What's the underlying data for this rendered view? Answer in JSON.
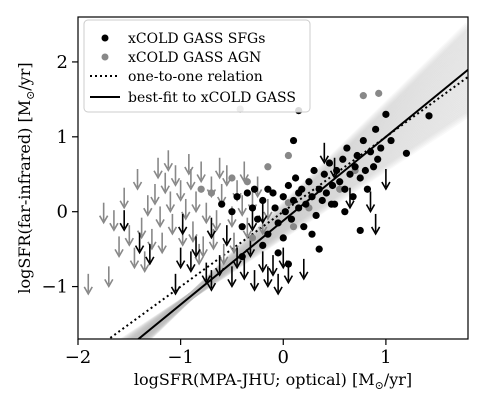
{
  "chart_data": {
    "type": "scatter",
    "xlabel_main": "logSFR(MPA-JHU; optical) [M",
    "xlabel_sub": "⊙",
    "xlabel_tail": "/yr]",
    "ylabel_main": "logSFR(far-infrared) [M",
    "ylabel_sub": "⊙",
    "ylabel_tail": "/yr]",
    "xlim": [
      -2.0,
      1.8
    ],
    "ylim": [
      -1.7,
      2.6
    ],
    "xticks": [
      -2,
      -1,
      0,
      1
    ],
    "xtick_labels": [
      "−2",
      "−1",
      "0",
      "1"
    ],
    "yticks": [
      -1,
      0,
      1,
      2
    ],
    "ytick_labels": [
      "−1",
      "0",
      "1",
      "2"
    ],
    "grid": false,
    "legend_position": "top-left",
    "legend": [
      {
        "label": "xCOLD GASS SFGs",
        "marker": "dot",
        "color": "#000000"
      },
      {
        "label": "xCOLD GASS AGN",
        "marker": "dot",
        "color": "#888888"
      },
      {
        "label": "one-to-one relation",
        "marker": "dotted-line",
        "color": "#000000"
      },
      {
        "label": "best-fit to xCOLD GASS",
        "marker": "solid-line",
        "color": "#000000"
      }
    ],
    "colors": {
      "sfg": "#000000",
      "agn": "#888888",
      "band": "#bdbdbd"
    },
    "one_to_one": {
      "slope": 1.0,
      "intercept": 0.0
    },
    "best_fit": {
      "slope": 1.12,
      "intercept": -0.12
    },
    "sfg_detections": [
      [
        -0.6,
        0.1
      ],
      [
        -0.5,
        0.0
      ],
      [
        -0.45,
        0.2
      ],
      [
        -0.4,
        -0.2
      ],
      [
        -0.35,
        0.25
      ],
      [
        -0.3,
        0.05
      ],
      [
        -0.28,
        0.3
      ],
      [
        -0.25,
        -0.1
      ],
      [
        -0.2,
        0.15
      ],
      [
        -0.15,
        -0.3
      ],
      [
        -0.1,
        0.25
      ],
      [
        -0.08,
        0.05
      ],
      [
        -0.05,
        -0.15
      ],
      [
        0.0,
        0.2
      ],
      [
        0.02,
        0.0
      ],
      [
        0.05,
        0.35
      ],
      [
        0.08,
        -0.1
      ],
      [
        0.1,
        0.15
      ],
      [
        0.12,
        0.45
      ],
      [
        0.15,
        0.05
      ],
      [
        0.18,
        0.3
      ],
      [
        0.2,
        -0.2
      ],
      [
        0.22,
        0.1
      ],
      [
        0.25,
        0.4
      ],
      [
        0.28,
        0.2
      ],
      [
        0.3,
        0.55
      ],
      [
        0.32,
        -0.05
      ],
      [
        0.35,
        0.3
      ],
      [
        0.38,
        0.15
      ],
      [
        0.4,
        0.5
      ],
      [
        0.42,
        0.25
      ],
      [
        0.45,
        0.65
      ],
      [
        0.48,
        0.35
      ],
      [
        0.5,
        0.1
      ],
      [
        0.52,
        0.55
      ],
      [
        0.55,
        0.4
      ],
      [
        0.58,
        0.7
      ],
      [
        0.6,
        0.3
      ],
      [
        0.62,
        0.85
      ],
      [
        0.65,
        0.5
      ],
      [
        0.68,
        0.2
      ],
      [
        0.7,
        0.6
      ],
      [
        0.72,
        0.75
      ],
      [
        0.75,
        0.45
      ],
      [
        0.78,
        0.95
      ],
      [
        0.8,
        0.55
      ],
      [
        0.82,
        0.3
      ],
      [
        0.85,
        0.8
      ],
      [
        0.88,
        0.6
      ],
      [
        0.9,
        1.1
      ],
      [
        0.92,
        0.7
      ],
      [
        0.95,
        0.85
      ],
      [
        1.0,
        1.3
      ],
      [
        1.05,
        0.95
      ],
      [
        1.2,
        0.78
      ],
      [
        1.42,
        1.28
      ],
      [
        0.15,
        1.35
      ],
      [
        0.1,
        0.95
      ],
      [
        -0.05,
        -0.55
      ],
      [
        0.35,
        -0.5
      ],
      [
        0.75,
        -0.25
      ],
      [
        0.6,
        0.0
      ],
      [
        0.0,
        -0.35
      ],
      [
        -0.2,
        -0.45
      ],
      [
        0.05,
        -0.7
      ],
      [
        -0.4,
        -0.6
      ],
      [
        0.28,
        -0.3
      ],
      [
        0.47,
        0.1
      ],
      [
        0.15,
        0.25
      ],
      [
        -0.15,
        0.3
      ]
    ],
    "sfg_limits": [
      [
        -1.55,
        -0.1
      ],
      [
        -1.3,
        -0.55
      ],
      [
        -1.0,
        -0.6
      ],
      [
        -0.9,
        -0.65
      ],
      [
        -0.85,
        -0.45
      ],
      [
        -0.75,
        -0.8
      ],
      [
        -0.7,
        -0.9
      ],
      [
        -0.62,
        -0.7
      ],
      [
        -0.55,
        -0.3
      ],
      [
        -0.5,
        -0.85
      ],
      [
        -0.45,
        -0.6
      ],
      [
        -0.38,
        -0.75
      ],
      [
        -0.32,
        -0.45
      ],
      [
        -0.28,
        -0.9
      ],
      [
        -0.2,
        -0.65
      ],
      [
        -0.15,
        -0.85
      ],
      [
        -0.1,
        -0.7
      ],
      [
        -0.05,
        -0.95
      ],
      [
        0.0,
        -0.6
      ],
      [
        0.05,
        -0.8
      ],
      [
        -1.05,
        -0.95
      ],
      [
        -1.4,
        -0.4
      ],
      [
        -0.98,
        -0.15
      ],
      [
        -0.7,
        -0.2
      ],
      [
        0.2,
        -0.75
      ],
      [
        0.4,
        0.8
      ],
      [
        0.5,
        0.6
      ],
      [
        0.65,
        0.2
      ],
      [
        0.85,
        0.15
      ],
      [
        0.9,
        -0.15
      ],
      [
        1.0,
        0.45
      ],
      [
        -0.3,
        -0.1
      ],
      [
        -0.2,
        0.0
      ]
    ],
    "agn_detections": [
      [
        -0.42,
        1.37
      ],
      [
        0.78,
        1.55
      ],
      [
        0.93,
        1.58
      ],
      [
        -0.35,
        0.4
      ],
      [
        0.05,
        0.12
      ],
      [
        -0.15,
        0.6
      ],
      [
        -0.7,
        0.25
      ],
      [
        -0.3,
        -0.35
      ],
      [
        0.25,
        0.05
      ],
      [
        0.7,
        0.55
      ],
      [
        0.55,
        0.3
      ],
      [
        0.1,
        -0.2
      ],
      [
        -0.5,
        0.45
      ],
      [
        -0.8,
        0.3
      ],
      [
        0.05,
        0.75
      ]
    ],
    "agn_limits": [
      [
        -1.9,
        -0.95
      ],
      [
        -1.7,
        -0.85
      ],
      [
        -1.6,
        -0.45
      ],
      [
        -1.5,
        -0.3
      ],
      [
        -1.45,
        -0.6
      ],
      [
        -1.38,
        -0.2
      ],
      [
        -1.32,
        0.1
      ],
      [
        -1.25,
        0.25
      ],
      [
        -1.2,
        -0.05
      ],
      [
        -1.15,
        0.4
      ],
      [
        -1.1,
        0.15
      ],
      [
        -1.05,
        0.5
      ],
      [
        -1.0,
        0.3
      ],
      [
        -0.95,
        0.05
      ],
      [
        -0.9,
        0.45
      ],
      [
        -0.85,
        0.15
      ],
      [
        -0.8,
        0.55
      ],
      [
        -0.75,
        0.0
      ],
      [
        -0.7,
        0.35
      ],
      [
        -0.65,
        -0.1
      ],
      [
        -0.6,
        0.25
      ],
      [
        -0.55,
        0.5
      ],
      [
        -0.5,
        -0.05
      ],
      [
        -0.45,
        0.3
      ],
      [
        -0.4,
        0.1
      ],
      [
        -0.35,
        -0.2
      ],
      [
        -0.3,
        0.15
      ],
      [
        -0.25,
        0.35
      ],
      [
        -0.2,
        -0.15
      ],
      [
        -0.15,
        0.05
      ],
      [
        -1.55,
        0.2
      ],
      [
        -1.42,
        0.45
      ],
      [
        -1.28,
        -0.35
      ],
      [
        -1.18,
        -0.4
      ],
      [
        -1.08,
        -0.15
      ],
      [
        -0.98,
        -0.3
      ],
      [
        -0.88,
        -0.25
      ],
      [
        -0.78,
        -0.45
      ],
      [
        -0.68,
        -0.35
      ],
      [
        -0.58,
        -0.55
      ],
      [
        -1.65,
        -0.1
      ],
      [
        -1.75,
        0.0
      ],
      [
        -1.35,
        -0.65
      ],
      [
        -1.22,
        0.6
      ],
      [
        -1.12,
        0.7
      ],
      [
        -0.92,
        0.65
      ],
      [
        -0.82,
        -0.55
      ],
      [
        -0.62,
        0.6
      ],
      [
        -0.48,
        -0.4
      ],
      [
        -0.38,
        0.55
      ]
    ]
  }
}
